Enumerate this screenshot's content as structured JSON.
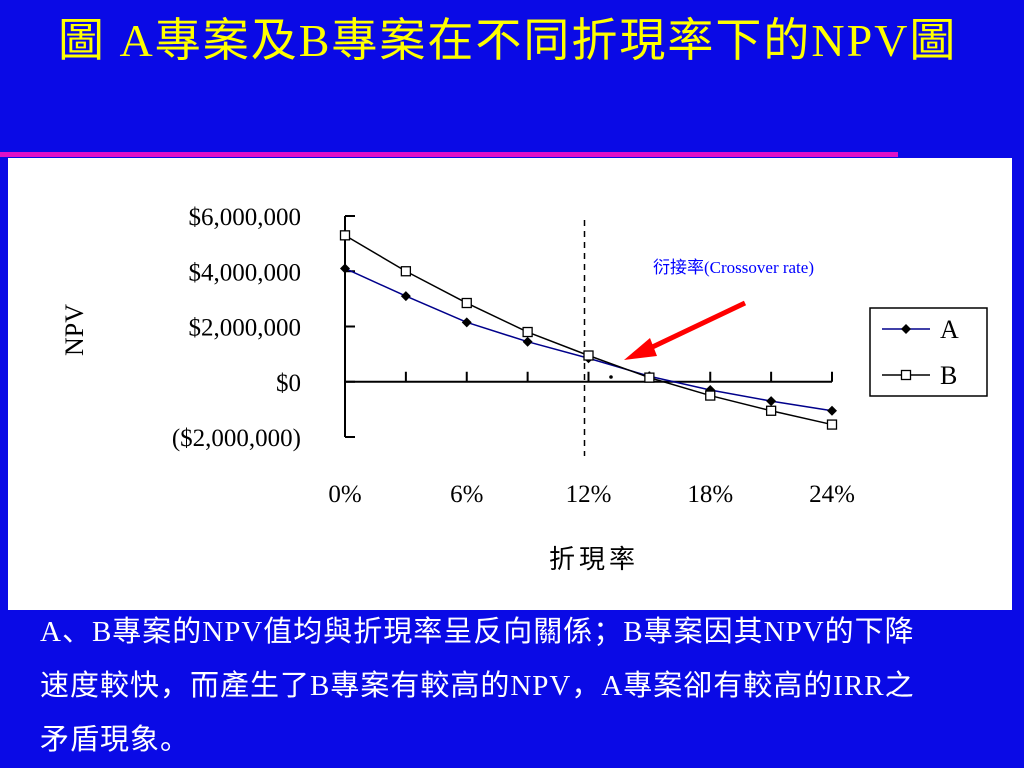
{
  "slide": {
    "title": "圖 A專案及B專案在不同折現率下的NPV圖",
    "caption": "A、B專案的NPV值均與折現率呈反向關係；B專案因其NPV的下降速度較快，而產生了B專案有較高的NPV，A專案卻有較高的IRR之矛盾現象。"
  },
  "colors": {
    "background": "#0a0ae6",
    "title": "#ffff00",
    "rule": "#e010c8",
    "series_a": "#00008b",
    "series_b": "#000000",
    "arrow": "#ff0000",
    "annotation": "#0000ff"
  },
  "chart_data": {
    "type": "line",
    "xlabel": "折現率",
    "ylabel": "NPV",
    "x_tick_labels": [
      "0%",
      "6%",
      "12%",
      "18%",
      "24%"
    ],
    "y_tick_labels": [
      "$6,000,000",
      "$4,000,000",
      "$2,000,000",
      "$0",
      "($2,000,000)"
    ],
    "y_ticks": [
      6000000,
      4000000,
      2000000,
      0,
      -2000000
    ],
    "x_ticks": [
      0,
      6,
      12,
      18,
      24
    ],
    "xlim": [
      0,
      24
    ],
    "ylim": [
      -2000000,
      6000000
    ],
    "x": [
      0,
      3,
      6,
      9,
      12,
      15,
      18,
      21,
      24
    ],
    "series": [
      {
        "name": "A",
        "marker": "filled-diamond",
        "values": [
          4100000,
          3100000,
          2150000,
          1450000,
          850000,
          200000,
          -300000,
          -700000,
          -1050000
        ]
      },
      {
        "name": "B",
        "marker": "hollow-square",
        "values": [
          5300000,
          4000000,
          2850000,
          1800000,
          950000,
          150000,
          -500000,
          -1050000,
          -1550000
        ]
      }
    ],
    "crossover_line_x": 12,
    "annotation": "衍接率(Crossover rate)",
    "legend_position": "right"
  }
}
